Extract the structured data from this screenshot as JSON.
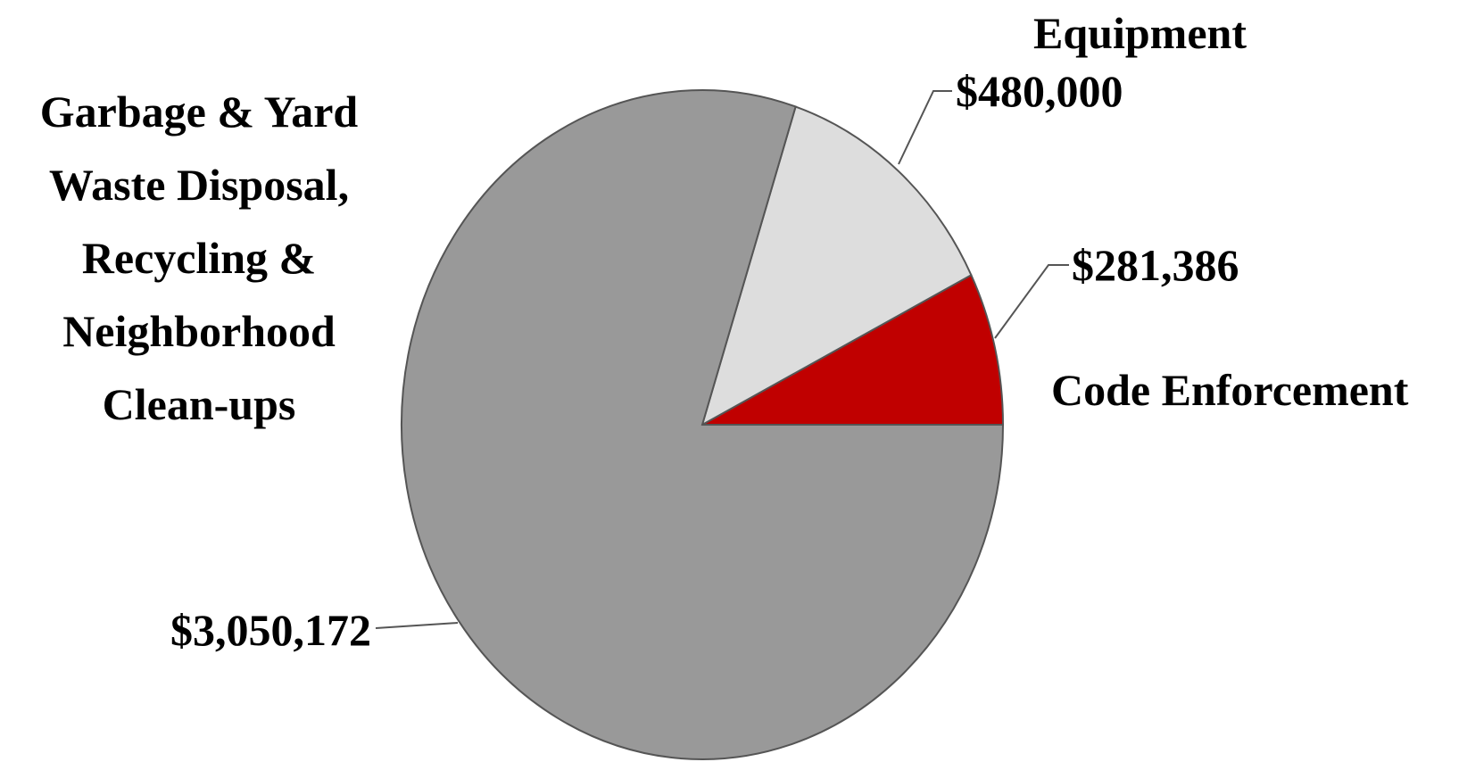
{
  "chart_data": {
    "type": "pie",
    "categories": [
      "Code Enforcement",
      "Equipment",
      "Garbage & Yard Waste Disposal, Recycling & Neighborhood Clean-ups"
    ],
    "values": [
      281386,
      480000,
      3050172
    ],
    "value_labels": [
      "$281,386",
      "$480,000",
      "$3,050,172"
    ],
    "colors": [
      "#c00000",
      "#dddddd",
      "#999999"
    ]
  }
}
